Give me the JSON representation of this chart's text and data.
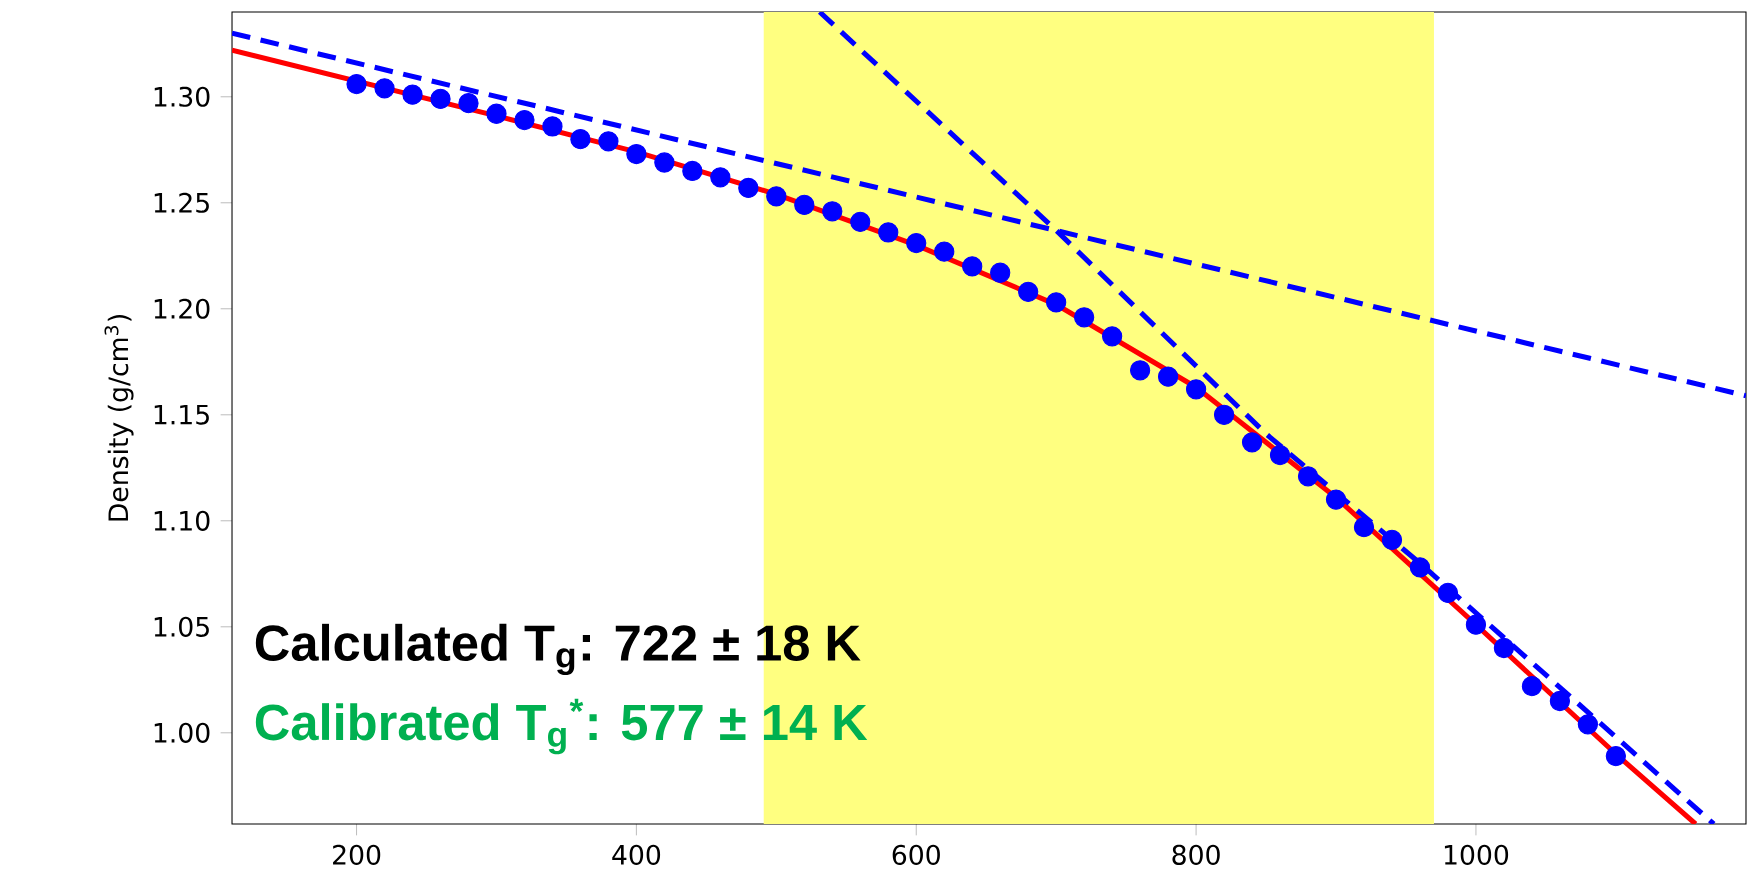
{
  "chart_data": {
    "type": "scatter",
    "ylabel": "Density (g/cm$^{3}$)",
    "xlim": [
      111,
      1193
    ],
    "ylim": [
      0.957,
      1.34
    ],
    "xticks": [
      200,
      400,
      600,
      800,
      1000
    ],
    "yticks": [
      {
        "value": 1.0,
        "label": "1.00"
      },
      {
        "value": 1.05,
        "label": "1.05"
      },
      {
        "value": 1.1,
        "label": "1.10"
      },
      {
        "value": 1.15,
        "label": "1.15"
      },
      {
        "value": 1.2,
        "label": "1.20"
      },
      {
        "value": 1.25,
        "label": "1.25"
      },
      {
        "value": 1.3,
        "label": "1.30"
      }
    ],
    "bands": [
      {
        "axis": "x",
        "from": 491,
        "to": 970,
        "color": "#ffff80"
      }
    ],
    "series": [
      {
        "color": "#0000ff",
        "marker": "circle",
        "x": [
          200,
          220,
          240,
          260,
          280,
          300,
          320,
          340,
          360,
          380,
          400,
          420,
          440,
          460,
          480,
          500,
          520,
          540,
          560,
          580,
          600,
          620,
          640,
          660,
          680,
          700,
          720,
          740,
          760,
          780,
          800,
          820,
          840,
          860,
          880,
          900,
          920,
          940,
          960,
          980,
          1000,
          1020,
          1040,
          1060,
          1080,
          1100
        ],
        "values": [
          1.306,
          1.304,
          1.301,
          1.299,
          1.297,
          1.292,
          1.289,
          1.286,
          1.28,
          1.279,
          1.273,
          1.269,
          1.265,
          1.262,
          1.257,
          1.253,
          1.249,
          1.246,
          1.241,
          1.236,
          1.231,
          1.227,
          1.22,
          1.217,
          1.208,
          1.203,
          1.196,
          1.187,
          1.171,
          1.168,
          1.162,
          1.15,
          1.137,
          1.131,
          1.121,
          1.11,
          1.097,
          1.091,
          1.078,
          1.066,
          1.051,
          1.04,
          1.022,
          1.015,
          1.004,
          0.989
        ]
      },
      {
        "type": "line",
        "color": "#ff0000",
        "line_style": "solid",
        "x": [
          111,
          300,
          400,
          500,
          600,
          700,
          800,
          900,
          1000,
          1100,
          1157
        ],
        "values": [
          1.322,
          1.291,
          1.274,
          1.254,
          1.23,
          1.202,
          1.163,
          1.111,
          1.051,
          0.99,
          0.957
        ]
      },
      {
        "type": "line",
        "color": "#0000ff",
        "line_style": "dashed",
        "x": [
          111,
          1193
        ],
        "values": [
          1.33,
          1.159
        ]
      },
      {
        "type": "line",
        "color": "#0000ff",
        "line_style": "dashed",
        "x": [
          531,
          700,
          850,
          960,
          1170
        ],
        "values": [
          1.34,
          1.237,
          1.141,
          1.08,
          0.957
        ]
      }
    ],
    "annotations": [
      "Calculated T$_{g}$: 722 ± 18 K",
      "Calibrated T$_{g}$$^{*}$: 577 ± 14 K"
    ]
  }
}
